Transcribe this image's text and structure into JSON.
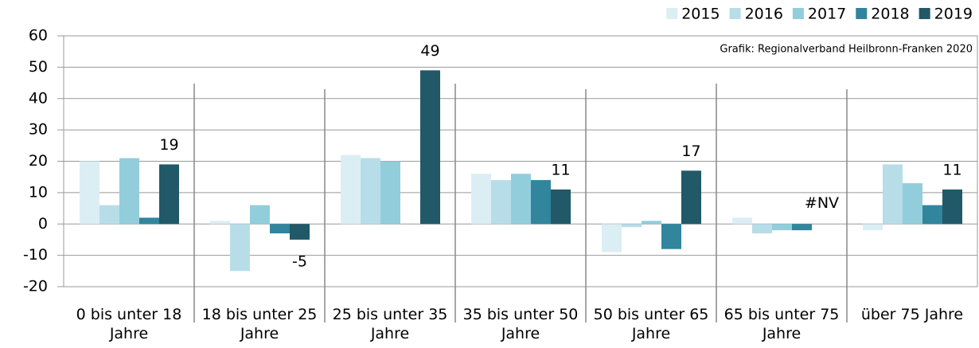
{
  "chart_data": {
    "type": "bar",
    "annotation": "Grafik: Regionalverband Heilbronn-Franken 2020",
    "categories": [
      "0 bis unter 18 Jahre",
      "18 bis unter 25 Jahre",
      "25 bis unter 35 Jahre",
      "35 bis unter 50 Jahre",
      "50 bis unter 65 Jahre",
      "65 bis unter 75 Jahre",
      "über 75 Jahre"
    ],
    "series": [
      {
        "name": "2015",
        "color": "#dbeef4",
        "values": [
          20,
          1,
          22,
          16,
          -9,
          2,
          -2
        ]
      },
      {
        "name": "2016",
        "color": "#b7dde8",
        "values": [
          6,
          -15,
          21,
          14,
          -1,
          -3,
          19
        ]
      },
      {
        "name": "2017",
        "color": "#92cddc",
        "values": [
          21,
          6,
          20,
          16,
          1,
          -2,
          13
        ]
      },
      {
        "name": "2018",
        "color": "#31859c",
        "values": [
          2,
          -3,
          null,
          14,
          -8,
          -2,
          6
        ]
      },
      {
        "name": "2019",
        "color": "#215968",
        "values": [
          19,
          -5,
          49,
          11,
          17,
          null,
          11
        ],
        "value_labels": [
          "19",
          "-5",
          "49",
          "11",
          "17",
          "#NV",
          "11"
        ]
      }
    ],
    "ylim": [
      -20,
      60
    ],
    "yticks": [
      -20,
      -10,
      0,
      10,
      20,
      30,
      40,
      50,
      60
    ],
    "grid": true,
    "legend": "top-right"
  }
}
